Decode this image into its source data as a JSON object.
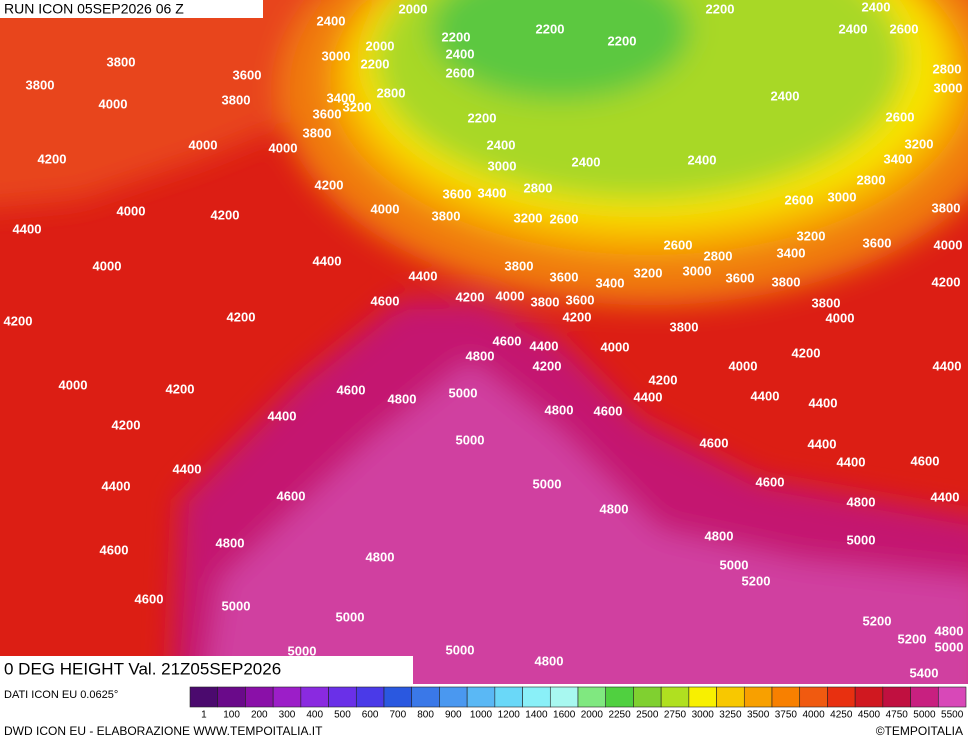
{
  "header": {
    "run": "RUN ICON 05SEP2026 06 Z",
    "field": "0 DEG HEIGHT Val. 21Z05SEP2026"
  },
  "contour_labels": [
    2400,
    2000,
    2200,
    2200,
    2400,
    2400,
    2600,
    3800,
    3800,
    3600,
    3000,
    2000,
    2200,
    2200,
    2400,
    2600,
    2200,
    2800,
    3000,
    3400,
    3200,
    2800,
    3600,
    3800,
    4000,
    2400,
    2600,
    3800,
    4000,
    4000,
    2200,
    2400,
    3200,
    3400,
    4200,
    3000,
    2400,
    2400,
    2800,
    4200,
    2800,
    3600,
    3400,
    4000,
    4000,
    4200,
    3800,
    3200,
    2600,
    2600,
    3000,
    3800,
    4400,
    3200,
    3600,
    4000,
    2600,
    2800,
    3400,
    4000,
    4400,
    3800,
    3600,
    3000,
    3200,
    3400,
    3600,
    3800,
    4200,
    4400,
    4600,
    4200,
    4000,
    3800,
    3600,
    3800,
    4200,
    4000,
    4200,
    4200,
    3800,
    4600,
    4400,
    4000,
    4800,
    4200,
    4200,
    4400,
    4000,
    4200,
    4600,
    4800,
    5000,
    4000,
    4200,
    4400,
    4400,
    4800,
    4600,
    4400,
    4200,
    5000,
    4600,
    4400,
    4400,
    4400,
    4600,
    4400,
    4600,
    4800,
    4400,
    4400,
    5000,
    4600,
    4800,
    4800,
    4800,
    5000,
    4600,
    4800,
    5000,
    5200,
    4600,
    5000,
    5000,
    5200,
    5200,
    4800,
    5000,
    5000,
    5000,
    4800,
    5400
  ],
  "legend": {
    "source": "DATI ICON EU 0.0625°",
    "levels": [
      1,
      100,
      200,
      300,
      400,
      500,
      600,
      700,
      800,
      900,
      1000,
      1200,
      1400,
      1600,
      2000,
      2250,
      2500,
      2750,
      3000,
      3250,
      3500,
      3750,
      4000,
      4250,
      4500,
      4750,
      5000,
      5500
    ],
    "colors": [
      "#4b0a6e",
      "#6a0a8a",
      "#8a10a8",
      "#9c1ec8",
      "#8a2ae0",
      "#6a30e8",
      "#4a3ae8",
      "#2a58e0",
      "#3a78e8",
      "#4a98f0",
      "#5ab8f5",
      "#6ad8f8",
      "#8af0f8",
      "#a8f8f0",
      "#80e880",
      "#50d040",
      "#80d030",
      "#b0e020",
      "#f8f000",
      "#f8c800",
      "#f8a000",
      "#f88000",
      "#f05a10",
      "#e83010",
      "#d01820",
      "#c01040",
      "#c82080",
      "#d848b8"
    ]
  },
  "footer": {
    "credit": "DWD ICON EU - ELABORAZIONE WWW.TEMPOITALIA.IT",
    "copyright": "©TEMPOITALIA"
  }
}
